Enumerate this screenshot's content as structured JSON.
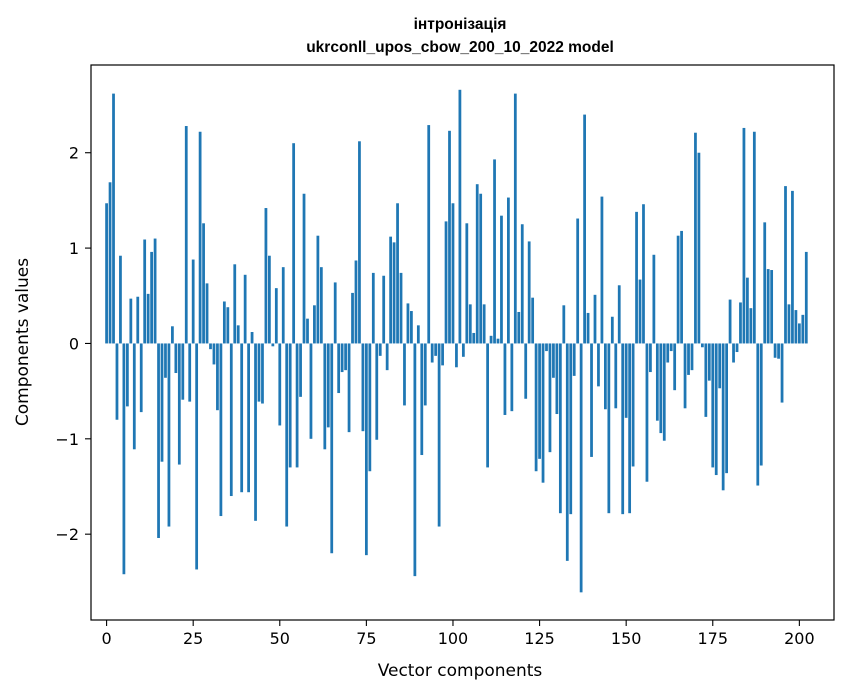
{
  "chart_data": {
    "type": "bar",
    "title": "інтронізація",
    "subtitle": "ukrconll_upos_cbow_200_10_2022 model",
    "xlabel": "Vector components",
    "ylabel": "Components values",
    "xlim": [
      -4.5,
      210
    ],
    "ylim": [
      -2.9,
      2.92
    ],
    "xticks": [
      0,
      25,
      50,
      75,
      100,
      125,
      150,
      175,
      200
    ],
    "yticks": [
      -2,
      -1,
      0,
      1,
      2
    ],
    "xtick_labels": [
      "0",
      "25",
      "50",
      "75",
      "100",
      "125",
      "150",
      "175",
      "200"
    ],
    "ytick_labels": [
      "−2",
      "−1",
      "0",
      "1",
      "2"
    ],
    "bar_color": "#1f77b4",
    "grid": false,
    "values": [
      1.47,
      1.69,
      2.62,
      -0.8,
      0.92,
      -2.42,
      -0.66,
      0.47,
      -1.11,
      0.49,
      -0.72,
      1.09,
      0.52,
      0.96,
      1.1,
      -2.04,
      -1.24,
      -0.36,
      -1.92,
      0.18,
      -0.31,
      -1.27,
      -0.59,
      2.28,
      -0.61,
      0.88,
      -2.37,
      2.22,
      1.26,
      0.63,
      -0.06,
      -0.22,
      -0.7,
      -1.81,
      0.44,
      0.38,
      -1.6,
      0.83,
      0.19,
      -1.56,
      0.72,
      -1.56,
      0.12,
      -1.86,
      -0.61,
      -0.63,
      1.42,
      0.92,
      -0.03,
      0.58,
      -0.86,
      0.8,
      -1.92,
      -1.3,
      2.1,
      -1.3,
      -0.56,
      1.57,
      0.26,
      -1.0,
      0.4,
      1.13,
      0.8,
      -1.11,
      -0.88,
      -2.2,
      0.64,
      -0.52,
      -0.3,
      -0.28,
      -0.93,
      0.53,
      0.87,
      2.12,
      -0.92,
      -2.22,
      -1.34,
      0.74,
      -1.01,
      -0.13,
      0.71,
      -0.28,
      1.12,
      1.06,
      1.47,
      0.74,
      -0.65,
      0.42,
      0.34,
      -2.44,
      0.19,
      -1.17,
      -0.65,
      2.29,
      -0.2,
      -0.13,
      -1.92,
      -0.23,
      1.28,
      2.23,
      1.47,
      -0.25,
      2.66,
      -0.14,
      1.26,
      0.41,
      0.11,
      1.67,
      1.57,
      0.41,
      -1.3,
      0.08,
      1.93,
      0.05,
      1.34,
      -0.75,
      1.53,
      -0.71,
      2.62,
      0.33,
      1.25,
      -0.58,
      1.07,
      0.48,
      -1.34,
      -1.21,
      -1.46,
      -0.08,
      -1.14,
      -0.36,
      -0.74,
      -1.78,
      0.4,
      -2.28,
      -1.79,
      -0.34,
      1.31,
      -2.61,
      2.4,
      0.32,
      -1.19,
      0.51,
      -0.45,
      1.54,
      -0.69,
      -1.78,
      0.28,
      -0.68,
      0.61,
      -1.79,
      -0.78,
      -1.78,
      -1.29,
      1.38,
      0.67,
      1.46,
      -1.45,
      -0.3,
      0.93,
      -0.81,
      -0.94,
      -1.02,
      -0.2,
      -0.08,
      -0.49,
      1.13,
      1.18,
      -0.68,
      -0.33,
      -0.28,
      2.21,
      2.0,
      -0.04,
      -0.77,
      -0.39,
      -1.3,
      -1.38,
      -0.47,
      -1.54,
      -1.36,
      0.46,
      -0.2,
      -0.09,
      0.43,
      2.26,
      0.69,
      0.37,
      2.22,
      -1.49,
      -1.28,
      1.27,
      0.78,
      0.77,
      -0.15,
      -0.16,
      -0.62,
      1.65,
      0.41,
      1.6,
      0.35,
      0.21,
      0.3,
      0.96
    ]
  }
}
